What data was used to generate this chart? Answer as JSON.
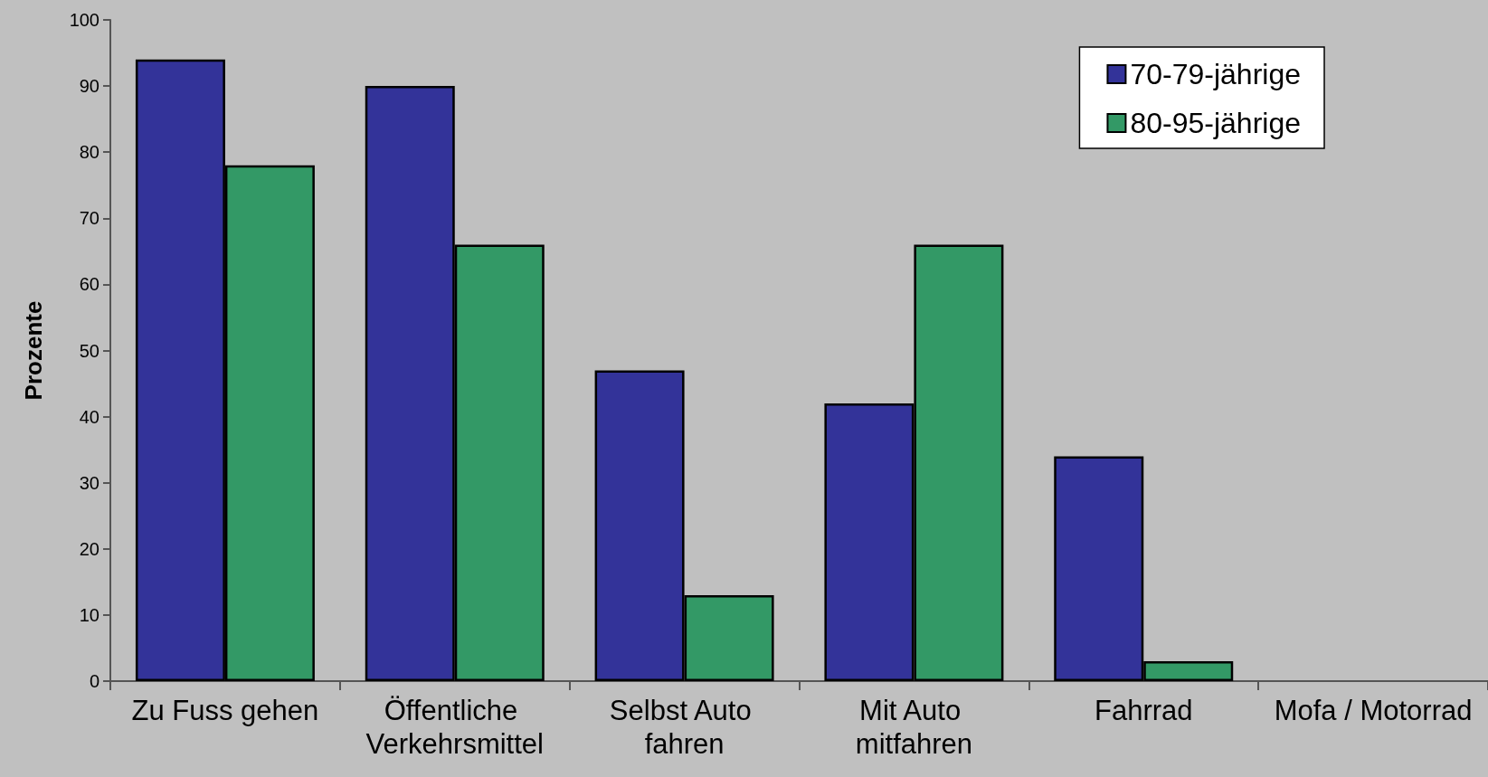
{
  "chart_data": {
    "type": "bar",
    "ylabel": "Prozente",
    "categories": [
      "Zu Fuss gehen",
      "Öffentliche Verkehrsmittel",
      "Selbst Auto fahren",
      "Mit Auto mitfahren",
      "Fahrrad",
      "Mofa / Motorrad"
    ],
    "series": [
      {
        "name": "70-79-jährige",
        "color": "#333399",
        "values": [
          94,
          90,
          47,
          42,
          34,
          0
        ]
      },
      {
        "name": "80-95-jährige",
        "color": "#339966",
        "values": [
          78,
          66,
          13,
          66,
          3,
          0
        ]
      }
    ],
    "ylim": [
      0,
      100
    ],
    "yticks": [
      0,
      10,
      20,
      30,
      40,
      50,
      60,
      70,
      80,
      90,
      100
    ],
    "grid": false,
    "legend": "top right"
  }
}
